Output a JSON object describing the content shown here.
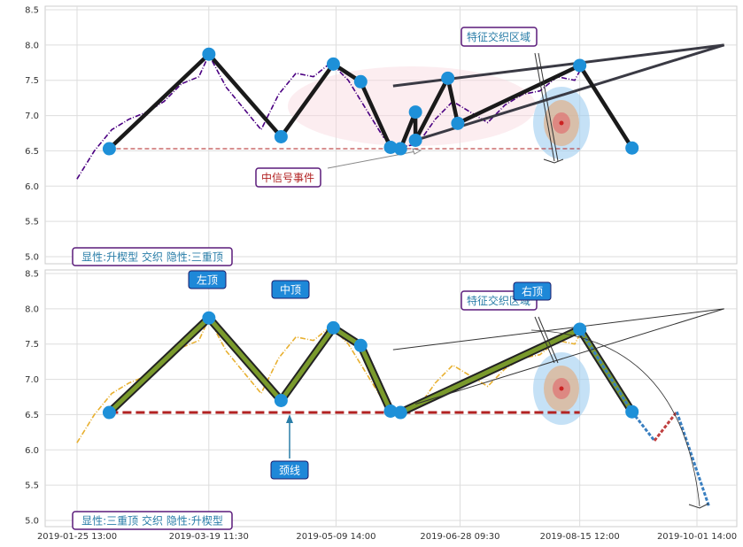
{
  "chart_data": [
    {
      "type": "line",
      "panel": "top",
      "ylim": [
        4.9,
        8.55
      ],
      "yticks": [
        "8.5",
        "8.0",
        "7.5",
        "7.0",
        "6.5",
        "6.0",
        "5.5",
        "5.0"
      ],
      "grid": true,
      "colors": {
        "price": "#4b0082",
        "pattern": "#1a1a1a",
        "pivot": "#1e90d8",
        "neckline": "#b22222",
        "trend": "#3a3a44"
      },
      "price_series": {
        "name": "",
        "x": [
          "2019-01-25",
          "2019-02-01",
          "2019-02-08",
          "2019-02-15",
          "2019-02-22",
          "2019-03-01",
          "2019-03-08",
          "2019-03-15",
          "2019-03-19",
          "2019-03-26",
          "2019-04-02",
          "2019-04-09",
          "2019-04-16",
          "2019-04-23",
          "2019-04-30",
          "2019-05-07",
          "2019-05-14",
          "2019-05-21",
          "2019-05-28",
          "2019-06-04",
          "2019-06-11",
          "2019-06-18",
          "2019-06-25",
          "2019-07-02",
          "2019-07-09",
          "2019-07-16",
          "2019-07-23",
          "2019-07-30",
          "2019-08-06",
          "2019-08-13",
          "2019-08-16"
        ],
        "y": [
          6.1,
          6.5,
          6.8,
          6.95,
          7.05,
          7.2,
          7.45,
          7.55,
          7.86,
          7.4,
          7.1,
          6.8,
          7.3,
          7.6,
          7.55,
          7.75,
          7.5,
          7.1,
          6.7,
          6.55,
          6.6,
          6.95,
          7.2,
          7.05,
          6.9,
          7.15,
          7.3,
          7.35,
          7.55,
          7.5,
          7.7
        ]
      },
      "pivots": {
        "x": [
          "2019-02-07",
          "2019-03-19",
          "2019-04-17",
          "2019-05-08",
          "2019-05-19",
          "2019-05-31",
          "2019-06-04",
          "2019-06-10",
          "2019-06-10",
          "2019-06-23",
          "2019-06-27",
          "2019-08-15",
          "2019-09-05"
        ],
        "y": [
          6.53,
          7.87,
          6.7,
          7.73,
          7.48,
          6.55,
          6.53,
          7.05,
          6.65,
          7.53,
          6.89,
          7.71,
          6.54
        ]
      },
      "neckline": {
        "x": [
          "2019-02-07",
          "2019-08-15"
        ],
        "y": [
          6.53,
          6.53
        ]
      },
      "trend_lines": [
        {
          "x": [
            "2019-06-01",
            "2019-10-12"
          ],
          "y": [
            7.42,
            8.0
          ]
        },
        {
          "x": [
            "2019-06-10",
            "2019-10-12"
          ],
          "y": [
            6.65,
            8.0
          ]
        }
      ],
      "annotations": [
        "特征交织区域",
        "中信号事件"
      ],
      "caption": "显性:升楔型 交织 隐性:三重顶"
    },
    {
      "type": "line",
      "panel": "bottom",
      "ylim": [
        4.9,
        8.55
      ],
      "yticks": [
        "8.5",
        "8.0",
        "7.5",
        "7.0",
        "6.5",
        "6.0",
        "5.5",
        "5.0"
      ],
      "xticks": [
        "2019-01-25 13:00",
        "2019-03-19 11:30",
        "2019-05-09 14:00",
        "2019-06-28 09:30",
        "2019-08-15 12:00",
        "2019-10-01 14:00"
      ],
      "grid": true,
      "colors": {
        "price": "#e8b030",
        "pattern": "#222222",
        "pattern_fill": "#7a9a2c",
        "pivot": "#1e90d8",
        "neckline": "#b22222",
        "projection_down": "#3a7fc0",
        "projection_up": "#c04040"
      },
      "price_series": {
        "name": "",
        "x": [
          "2019-01-25",
          "2019-02-01",
          "2019-02-08",
          "2019-02-15",
          "2019-02-22",
          "2019-03-01",
          "2019-03-08",
          "2019-03-15",
          "2019-03-19",
          "2019-03-26",
          "2019-04-02",
          "2019-04-09",
          "2019-04-16",
          "2019-04-23",
          "2019-04-30",
          "2019-05-07",
          "2019-05-14",
          "2019-05-21",
          "2019-05-28",
          "2019-06-04",
          "2019-06-11",
          "2019-06-18",
          "2019-06-25",
          "2019-07-02",
          "2019-07-09",
          "2019-07-16",
          "2019-07-23",
          "2019-07-30",
          "2019-08-06",
          "2019-08-13",
          "2019-08-16"
        ],
        "y": [
          6.1,
          6.5,
          6.8,
          6.95,
          7.05,
          7.2,
          7.45,
          7.55,
          7.86,
          7.4,
          7.1,
          6.8,
          7.3,
          7.6,
          7.55,
          7.75,
          7.5,
          7.1,
          6.7,
          6.55,
          6.6,
          6.95,
          7.2,
          7.05,
          6.9,
          7.15,
          7.3,
          7.35,
          7.55,
          7.5,
          7.7
        ]
      },
      "pivots": {
        "x": [
          "2019-02-07",
          "2019-03-19",
          "2019-04-17",
          "2019-05-08",
          "2019-05-19",
          "2019-05-31",
          "2019-06-04",
          "2019-08-15",
          "2019-09-05"
        ],
        "y": [
          6.53,
          7.87,
          6.7,
          7.73,
          7.48,
          6.55,
          6.53,
          7.71,
          6.54
        ]
      },
      "neckline": {
        "x": [
          "2019-02-07",
          "2019-08-15"
        ],
        "y": [
          6.53,
          6.53
        ]
      },
      "projection": {
        "x": [
          "2019-08-15",
          "2019-09-05",
          "2019-09-14",
          "2019-09-23",
          "2019-10-06"
        ],
        "y": [
          7.71,
          6.54,
          6.13,
          6.54,
          5.19
        ]
      },
      "annotations": [
        "左顶",
        "中顶",
        "特征交织区域",
        "右顶",
        "颈线"
      ],
      "caption": "显性:三重顶 交织 隐性:升楔型"
    }
  ]
}
